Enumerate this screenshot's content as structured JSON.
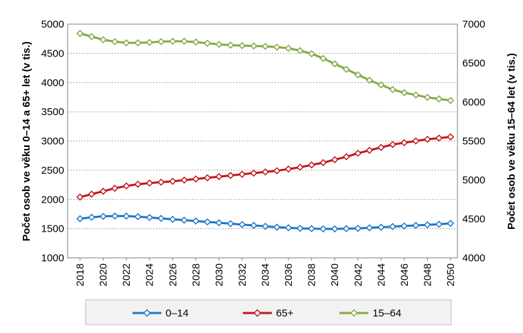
{
  "chart_data": {
    "type": "line",
    "title": "",
    "x": [
      2018,
      2019,
      2020,
      2021,
      2022,
      2023,
      2024,
      2025,
      2026,
      2027,
      2028,
      2029,
      2030,
      2031,
      2032,
      2033,
      2034,
      2035,
      2036,
      2037,
      2038,
      2039,
      2040,
      2041,
      2042,
      2043,
      2044,
      2045,
      2046,
      2047,
      2048,
      2049,
      2050
    ],
    "x_tick_labels": [
      "2018",
      "2020",
      "2022",
      "2024",
      "2026",
      "2028",
      "2030",
      "2032",
      "2034",
      "2036",
      "2038",
      "2040",
      "2042",
      "2044",
      "2046",
      "2048",
      "2050"
    ],
    "y_left": {
      "label": "Počet osob ve věku 0–14 a 65+ let (v tis.)",
      "ylim": [
        1000,
        5000
      ],
      "ticks": [
        "1000",
        "1500",
        "2000",
        "2500",
        "3000",
        "3500",
        "4000",
        "4500",
        "5000"
      ]
    },
    "y_right": {
      "label": "Počet osob ve věku 15–64 let (v tis.)",
      "ylim": [
        4000,
        7000
      ],
      "ticks": [
        "4000",
        "4500",
        "5000",
        "5500",
        "6000",
        "6500",
        "7000"
      ]
    },
    "grid": true,
    "legend_position": "bottom",
    "series": [
      {
        "name": "0–14",
        "axis": "left",
        "color": "#1f77c4",
        "marker": "diamond",
        "values": [
          1670,
          1695,
          1710,
          1715,
          1715,
          1705,
          1690,
          1675,
          1660,
          1645,
          1630,
          1615,
          1600,
          1585,
          1570,
          1555,
          1540,
          1525,
          1515,
          1505,
          1500,
          1495,
          1495,
          1500,
          1505,
          1515,
          1525,
          1535,
          1545,
          1555,
          1565,
          1575,
          1590
        ]
      },
      {
        "name": "65+",
        "axis": "left",
        "color": "#c0161c",
        "marker": "diamond",
        "values": [
          2040,
          2090,
          2140,
          2190,
          2230,
          2260,
          2280,
          2295,
          2310,
          2330,
          2350,
          2370,
          2390,
          2410,
          2430,
          2450,
          2470,
          2490,
          2520,
          2550,
          2590,
          2630,
          2680,
          2730,
          2790,
          2840,
          2890,
          2940,
          2970,
          3000,
          3030,
          3050,
          3070
        ]
      },
      {
        "name": "15–64",
        "axis": "right",
        "color": "#86a844",
        "marker": "diamond",
        "values": [
          6880,
          6840,
          6800,
          6775,
          6760,
          6760,
          6765,
          6775,
          6780,
          6780,
          6770,
          6755,
          6740,
          6730,
          6725,
          6720,
          6715,
          6705,
          6690,
          6660,
          6620,
          6560,
          6490,
          6420,
          6350,
          6280,
          6220,
          6160,
          6120,
          6090,
          6060,
          6040,
          6020
        ]
      }
    ]
  }
}
